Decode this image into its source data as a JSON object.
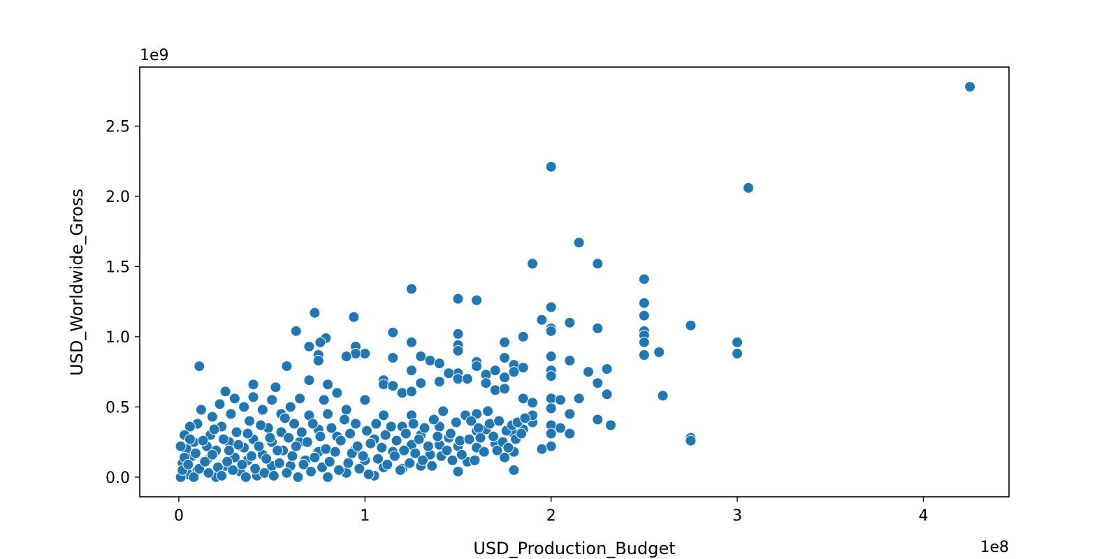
{
  "chart_data": {
    "type": "scatter",
    "title": "",
    "xlabel": "USD_Production_Budget",
    "ylabel": "USD_Worldwide_Gross",
    "x_offset_label": "1e8",
    "y_offset_label": "1e9",
    "xlim": [
      -21000000,
      446000000
    ],
    "ylim": [
      -140000000,
      2920000000
    ],
    "x_ticks": [
      {
        "value": 0,
        "label": "0"
      },
      {
        "value": 100000000,
        "label": "1"
      },
      {
        "value": 200000000,
        "label": "2"
      },
      {
        "value": 300000000,
        "label": "3"
      },
      {
        "value": 400000000,
        "label": "4"
      }
    ],
    "y_ticks": [
      {
        "value": 0,
        "label": "0.0"
      },
      {
        "value": 500000000,
        "label": "0.5"
      },
      {
        "value": 1000000000,
        "label": "1.0"
      },
      {
        "value": 1500000000,
        "label": "1.5"
      },
      {
        "value": 2000000000,
        "label": "2.0"
      },
      {
        "value": 2500000000,
        "label": "2.5"
      }
    ],
    "grid": false,
    "marker_color": "#1f77b4",
    "points_unit": "x in 1e8 USD, y in 1e9 USD",
    "points": [
      [
        4.25,
        2.78
      ],
      [
        2.0,
        2.21
      ],
      [
        3.06,
        2.06
      ],
      [
        2.15,
        1.67
      ],
      [
        2.25,
        1.52
      ],
      [
        1.9,
        1.52
      ],
      [
        2.5,
        1.41
      ],
      [
        1.25,
        1.34
      ],
      [
        1.5,
        1.27
      ],
      [
        1.6,
        1.26
      ],
      [
        2.5,
        1.24
      ],
      [
        2.0,
        1.21
      ],
      [
        2.5,
        1.15
      ],
      [
        0.73,
        1.17
      ],
      [
        0.94,
        1.14
      ],
      [
        1.95,
        1.12
      ],
      [
        2.1,
        1.1
      ],
      [
        2.75,
        1.08
      ],
      [
        2.0,
        1.06
      ],
      [
        2.25,
        1.06
      ],
      [
        2.0,
        1.04
      ],
      [
        2.5,
        1.04
      ],
      [
        0.63,
        1.04
      ],
      [
        1.15,
        1.03
      ],
      [
        1.5,
        1.02
      ],
      [
        2.5,
        1.01
      ],
      [
        1.85,
        1.0
      ],
      [
        2.5,
        0.96
      ],
      [
        3.0,
        0.96
      ],
      [
        1.75,
        0.96
      ],
      [
        0.79,
        0.99
      ],
      [
        0.76,
        0.96
      ],
      [
        0.7,
        0.93
      ],
      [
        0.95,
        0.93
      ],
      [
        1.25,
        0.96
      ],
      [
        1.5,
        0.94
      ],
      [
        1.5,
        0.9
      ],
      [
        2.5,
        0.87
      ],
      [
        2.58,
        0.89
      ],
      [
        3.0,
        0.88
      ],
      [
        2.0,
        0.86
      ],
      [
        1.75,
        0.85
      ],
      [
        1.3,
        0.86
      ],
      [
        1.15,
        0.85
      ],
      [
        1.0,
        0.88
      ],
      [
        0.95,
        0.88
      ],
      [
        0.9,
        0.86
      ],
      [
        0.75,
        0.87
      ],
      [
        0.75,
        0.83
      ],
      [
        1.35,
        0.83
      ],
      [
        1.4,
        0.81
      ],
      [
        1.6,
        0.82
      ],
      [
        1.6,
        0.79
      ],
      [
        1.8,
        0.8
      ],
      [
        1.85,
        0.78
      ],
      [
        2.1,
        0.83
      ],
      [
        2.3,
        0.77
      ],
      [
        2.2,
        0.75
      ],
      [
        2.0,
        0.76
      ],
      [
        2.0,
        0.72
      ],
      [
        1.7,
        0.76
      ],
      [
        1.65,
        0.73
      ],
      [
        1.75,
        0.71
      ],
      [
        1.8,
        0.75
      ],
      [
        1.5,
        0.74
      ],
      [
        1.45,
        0.74
      ],
      [
        1.25,
        0.76
      ],
      [
        1.1,
        0.69
      ],
      [
        1.1,
        0.66
      ],
      [
        1.2,
        0.6
      ],
      [
        1.15,
        0.65
      ],
      [
        1.3,
        0.67
      ],
      [
        1.4,
        0.68
      ],
      [
        1.5,
        0.7
      ],
      [
        1.55,
        0.7
      ],
      [
        1.65,
        0.67
      ],
      [
        1.7,
        0.62
      ],
      [
        1.75,
        0.63
      ],
      [
        1.85,
        0.56
      ],
      [
        1.9,
        0.53
      ],
      [
        2.0,
        0.56
      ],
      [
        2.0,
        0.49
      ],
      [
        2.05,
        0.55
      ],
      [
        2.15,
        0.56
      ],
      [
        2.25,
        0.67
      ],
      [
        2.3,
        0.59
      ],
      [
        2.1,
        0.45
      ],
      [
        2.25,
        0.41
      ],
      [
        2.32,
        0.37
      ],
      [
        2.6,
        0.58
      ],
      [
        2.75,
        0.28
      ],
      [
        2.75,
        0.26
      ],
      [
        2.0,
        0.37
      ],
      [
        2.05,
        0.35
      ],
      [
        2.1,
        0.31
      ],
      [
        2.0,
        0.31
      ],
      [
        2.0,
        0.22
      ],
      [
        1.95,
        0.2
      ],
      [
        1.85,
        0.34
      ],
      [
        1.9,
        0.39
      ],
      [
        1.9,
        0.44
      ],
      [
        1.8,
        0.31
      ],
      [
        1.8,
        0.18
      ],
      [
        1.75,
        0.14
      ],
      [
        1.8,
        0.05
      ],
      [
        1.7,
        0.24
      ],
      [
        1.65,
        0.34
      ],
      [
        1.6,
        0.45
      ],
      [
        1.6,
        0.33
      ],
      [
        1.6,
        0.21
      ],
      [
        1.55,
        0.11
      ],
      [
        1.5,
        0.04
      ],
      [
        1.5,
        0.22
      ],
      [
        1.45,
        0.28
      ],
      [
        1.4,
        0.36
      ],
      [
        1.4,
        0.23
      ],
      [
        1.35,
        0.16
      ],
      [
        1.3,
        0.08
      ],
      [
        1.3,
        0.3
      ],
      [
        1.25,
        0.44
      ],
      [
        1.25,
        0.61
      ],
      [
        1.25,
        0.23
      ],
      [
        1.2,
        0.06
      ],
      [
        1.2,
        0.36
      ],
      [
        1.15,
        0.18
      ],
      [
        1.1,
        0.07
      ],
      [
        1.1,
        0.44
      ],
      [
        1.05,
        0.27
      ],
      [
        1.05,
        0.01
      ],
      [
        1.0,
        0.55
      ],
      [
        1.0,
        0.12
      ],
      [
        0.95,
        0.38
      ],
      [
        0.95,
        0.2
      ],
      [
        0.9,
        0.03
      ],
      [
        0.9,
        0.48
      ],
      [
        0.85,
        0.6
      ],
      [
        0.85,
        0.29
      ],
      [
        0.8,
        0.0
      ],
      [
        0.8,
        0.66
      ],
      [
        0.8,
        0.45
      ],
      [
        0.78,
        0.55
      ],
      [
        0.75,
        0.18
      ],
      [
        0.75,
        0.34
      ],
      [
        0.7,
        0.44
      ],
      [
        0.7,
        0.69
      ],
      [
        0.68,
        0.12
      ],
      [
        0.65,
        0.56
      ],
      [
        0.65,
        0.25
      ],
      [
        0.62,
        0.38
      ],
      [
        0.6,
        0.08
      ],
      [
        0.6,
        0.5
      ],
      [
        0.58,
        0.79
      ],
      [
        0.56,
        0.19
      ],
      [
        0.55,
        0.32
      ],
      [
        0.55,
        0.45
      ],
      [
        0.52,
        0.64
      ],
      [
        0.5,
        0.55
      ],
      [
        0.5,
        0.25
      ],
      [
        0.5,
        0.08
      ],
      [
        0.48,
        0.35
      ],
      [
        0.45,
        0.48
      ],
      [
        0.45,
        0.16
      ],
      [
        0.42,
        0.01
      ],
      [
        0.4,
        0.66
      ],
      [
        0.4,
        0.57
      ],
      [
        0.4,
        0.27
      ],
      [
        0.38,
        0.4
      ],
      [
        0.37,
        0.12
      ],
      [
        0.35,
        0.5
      ],
      [
        0.35,
        0.21
      ],
      [
        0.33,
        0.04
      ],
      [
        0.31,
        0.32
      ],
      [
        0.3,
        0.56
      ],
      [
        0.3,
        0.14
      ],
      [
        0.28,
        0.45
      ],
      [
        0.27,
        0.25
      ],
      [
        0.25,
        0.61
      ],
      [
        0.25,
        0.08
      ],
      [
        0.23,
        0.36
      ],
      [
        0.22,
        0.52
      ],
      [
        0.2,
        0.19
      ],
      [
        0.2,
        0.0
      ],
      [
        0.18,
        0.43
      ],
      [
        0.17,
        0.3
      ],
      [
        0.15,
        0.12
      ],
      [
        0.15,
        0.22
      ],
      [
        0.12,
        0.48
      ],
      [
        0.11,
        0.79
      ],
      [
        0.1,
        0.38
      ],
      [
        0.1,
        0.05
      ],
      [
        0.08,
        0.25
      ],
      [
        0.07,
        0.15
      ],
      [
        0.06,
        0.36
      ],
      [
        0.05,
        0.02
      ],
      [
        0.04,
        0.2
      ],
      [
        0.03,
        0.3
      ],
      [
        0.02,
        0.1
      ],
      [
        0.01,
        0.0
      ],
      [
        0.01,
        0.22
      ],
      [
        0.02,
        0.05
      ],
      [
        0.03,
        0.14
      ],
      [
        0.05,
        0.09
      ],
      [
        0.06,
        0.27
      ],
      [
        0.08,
        0.0
      ],
      [
        0.09,
        0.17
      ],
      [
        0.11,
        0.06
      ],
      [
        0.13,
        0.26
      ],
      [
        0.14,
        0.11
      ],
      [
        0.16,
        0.03
      ],
      [
        0.18,
        0.16
      ],
      [
        0.19,
        0.34
      ],
      [
        0.21,
        0.07
      ],
      [
        0.23,
        0.01
      ],
      [
        0.24,
        0.27
      ],
      [
        0.26,
        0.11
      ],
      [
        0.27,
        0.19
      ],
      [
        0.29,
        0.05
      ],
      [
        0.32,
        0.23
      ],
      [
        0.34,
        0.09
      ],
      [
        0.36,
        0.0
      ],
      [
        0.37,
        0.31
      ],
      [
        0.39,
        0.15
      ],
      [
        0.41,
        0.06
      ],
      [
        0.43,
        0.22
      ],
      [
        0.44,
        0.37
      ],
      [
        0.46,
        0.03
      ],
      [
        0.47,
        0.13
      ],
      [
        0.49,
        0.28
      ],
      [
        0.51,
        0.01
      ],
      [
        0.53,
        0.19
      ],
      [
        0.54,
        0.1
      ],
      [
        0.57,
        0.42
      ],
      [
        0.58,
        0.03
      ],
      [
        0.59,
        0.28
      ],
      [
        0.61,
        0.15
      ],
      [
        0.63,
        0.22
      ],
      [
        0.64,
        0.0
      ],
      [
        0.66,
        0.32
      ],
      [
        0.67,
        0.09
      ],
      [
        0.69,
        0.25
      ],
      [
        0.71,
        0.04
      ],
      [
        0.72,
        0.38
      ],
      [
        0.73,
        0.14
      ],
      [
        0.76,
        0.29
      ],
      [
        0.77,
        0.07
      ],
      [
        0.79,
        0.2
      ],
      [
        0.81,
        0.11
      ],
      [
        0.82,
        0.35
      ],
      [
        0.84,
        0.18
      ],
      [
        0.86,
        0.05
      ],
      [
        0.87,
        0.26
      ],
      [
        0.89,
        0.41
      ],
      [
        0.91,
        0.1
      ],
      [
        0.92,
        0.31
      ],
      [
        0.93,
        0.17
      ],
      [
        0.96,
        0.22
      ],
      [
        0.97,
        0.06
      ],
      [
        0.99,
        0.15
      ],
      [
        1.01,
        0.33
      ],
      [
        1.02,
        0.02
      ],
      [
        1.03,
        0.24
      ],
      [
        1.06,
        0.38
      ],
      [
        1.07,
        0.13
      ],
      [
        1.09,
        0.21
      ],
      [
        1.11,
        0.3
      ],
      [
        1.12,
        0.09
      ],
      [
        1.14,
        0.36
      ],
      [
        1.16,
        0.15
      ],
      [
        1.17,
        0.26
      ],
      [
        1.19,
        0.05
      ],
      [
        1.21,
        0.19
      ],
      [
        1.22,
        0.31
      ],
      [
        1.24,
        0.1
      ],
      [
        1.26,
        0.38
      ],
      [
        1.27,
        0.17
      ],
      [
        1.29,
        0.27
      ],
      [
        1.31,
        0.12
      ],
      [
        1.32,
        0.35
      ],
      [
        1.34,
        0.22
      ],
      [
        1.36,
        0.08
      ],
      [
        1.37,
        0.41
      ],
      [
        1.39,
        0.29
      ],
      [
        1.41,
        0.15
      ],
      [
        1.42,
        0.47
      ],
      [
        1.44,
        0.19
      ],
      [
        1.46,
        0.31
      ],
      [
        1.47,
        0.12
      ],
      [
        1.49,
        0.39
      ],
      [
        1.51,
        0.26
      ],
      [
        1.52,
        0.16
      ],
      [
        1.54,
        0.44
      ],
      [
        1.56,
        0.27
      ],
      [
        1.57,
        0.4
      ],
      [
        1.59,
        0.12
      ],
      [
        1.61,
        0.35
      ],
      [
        1.62,
        0.28
      ],
      [
        1.64,
        0.18
      ],
      [
        1.66,
        0.47
      ],
      [
        1.67,
        0.38
      ],
      [
        1.69,
        0.29
      ],
      [
        1.71,
        0.19
      ],
      [
        1.72,
        0.4
      ],
      [
        1.74,
        0.25
      ],
      [
        1.76,
        0.33
      ],
      [
        1.77,
        0.21
      ],
      [
        1.79,
        0.37
      ],
      [
        1.81,
        0.27
      ],
      [
        1.82,
        0.39
      ],
      [
        1.84,
        0.31
      ],
      [
        1.86,
        0.42
      ]
    ]
  }
}
